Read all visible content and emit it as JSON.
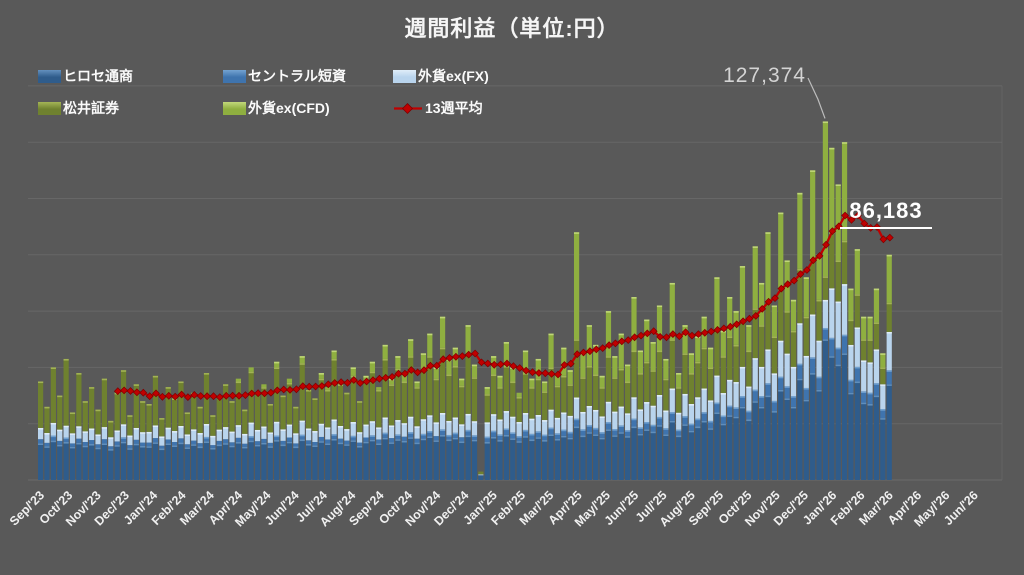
{
  "title": "週間利益（単位:円）",
  "colors": {
    "background": "#595959",
    "grid": "#6B6B6B",
    "text": "#F5F5F5",
    "tick_text": "#F0F0F0",
    "annotation_gray": "#D4D4D4",
    "callout_line": "#BDBDBD"
  },
  "legend": {
    "items": [
      {
        "label": "ヒロセ通商",
        "type": "swatch",
        "color": "#2F5C8B",
        "light": "#6390BE"
      },
      {
        "label": "セントラル短資",
        "type": "swatch",
        "color": "#3F74AE",
        "light": "#74A3D2"
      },
      {
        "label": "外貨ex(FX)",
        "type": "swatch",
        "color": "#B9D4ED",
        "light": "#E0EDF9"
      },
      {
        "label": "松井証券",
        "type": "swatch",
        "color": "#6F812F",
        "light": "#A4B556"
      },
      {
        "label": "外貨ex(CFD)",
        "type": "swatch",
        "color": "#8FAF40",
        "light": "#C2D87A"
      },
      {
        "label": "13週平均",
        "type": "line",
        "color": "#C00000",
        "light": "#E06060"
      }
    ]
  },
  "chart_data": {
    "type": "bar",
    "subtype": "stacked-weekly-bars-with-moving-average-line",
    "title": "週間利益（単位:円）",
    "unit": "円",
    "ylim": [
      0,
      140000
    ],
    "grid_step": 20000,
    "grid_visible": true,
    "y_axis_labels_visible": false,
    "legend_position": "top-left",
    "x_tick_labels": [
      "Sep/'23",
      "Oct/'23",
      "Nov/'23",
      "Dec/'23",
      "Jan/'24",
      "Feb/'24",
      "Mar/'24",
      "Apr/'24",
      "May/'24",
      "Jun/'24",
      "Jul/'24",
      "Aug/'24",
      "Sep/'24",
      "Oct/'24",
      "Nov/'24",
      "Dec/'24",
      "Jan/'25",
      "Feb/'25",
      "Mar/'25",
      "Apr/'25",
      "May/'25",
      "Jun/'25",
      "Jul/'25",
      "Aug/'25",
      "Sep/'25",
      "Oct/'25",
      "Nov/'25",
      "Dec/'25",
      "Jan/'26",
      "Feb/'26",
      "Mar/'26",
      "Apr/'26",
      "May/'26",
      "Jun/'26"
    ],
    "series": [
      {
        "name": "ヒロセ通商",
        "color": "#2F5C8B",
        "light": "#6390BE",
        "values": [
          13000,
          12000,
          14000,
          12500,
          13500,
          11800,
          13200,
          12200,
          12800,
          11500,
          13000,
          11000,
          12400,
          13600,
          11300,
          12900,
          12100,
          12000,
          13400,
          11200,
          13000,
          12300,
          13300,
          11600,
          12700,
          11900,
          13700,
          11400,
          12600,
          13100,
          12200,
          13500,
          11800,
          14000,
          12500,
          13200,
          12000,
          14200,
          12600,
          13600,
          11900,
          14400,
          12800,
          12300,
          13800,
          13000,
          14600,
          13300,
          12700,
          14100,
          12100,
          13600,
          14300,
          13000,
          15000,
          13400,
          14500,
          13900,
          15200,
          13300,
          14700,
          15500,
          14100,
          16000,
          14400,
          15000,
          13700,
          15800,
          14300,
          1500,
          13500,
          15300,
          14200,
          16000,
          14800,
          13800,
          15600,
          14400,
          15200,
          14200,
          16200,
          14600,
          15700,
          15000,
          19000,
          15800,
          17000,
          16200,
          15000,
          18000,
          15900,
          17000,
          15600,
          19000,
          16400,
          18000,
          17200,
          19500,
          16200,
          21000,
          15800,
          19800,
          17500,
          19000,
          21000,
          18400,
          24000,
          20000,
          23000,
          22500,
          26000,
          21500,
          28000,
          26000,
          30000,
          24500,
          32000,
          29000,
          26000,
          36000,
          28500,
          38000,
          32000,
          50000,
          44000,
          41000,
          45000,
          31000,
          35000,
          27500,
          27000,
          30000,
          22000,
          34000
        ]
      },
      {
        "name": "セントラル短資",
        "color": "#3F74AE",
        "light": "#74A3D2",
        "values": [
          1500,
          1200,
          1800,
          1400,
          1600,
          1200,
          1500,
          1300,
          1400,
          1200,
          1500,
          1000,
          1300,
          1600,
          1100,
          1400,
          1200,
          1300,
          1500,
          1000,
          1400,
          1200,
          1500,
          1100,
          1300,
          1200,
          1600,
          1000,
          1300,
          1400,
          1200,
          1500,
          1100,
          1600,
          1300,
          1400,
          1200,
          1600,
          1300,
          1500,
          1100,
          1700,
          1300,
          1200,
          1500,
          1400,
          1700,
          1400,
          1300,
          1600,
          1200,
          1500,
          1600,
          1400,
          1800,
          1500,
          1700,
          1500,
          1800,
          1400,
          1700,
          1900,
          1500,
          2000,
          1600,
          1800,
          1500,
          2000,
          1600,
          200,
          1900,
          2200,
          2000,
          2300,
          2100,
          1800,
          2200,
          2000,
          2100,
          1900,
          2400,
          2000,
          2200,
          2100,
          2800,
          2200,
          2500,
          2300,
          2000,
          2600,
          2200,
          2400,
          2100,
          2800,
          2300,
          2600,
          2400,
          2900,
          2200,
          3100,
          2100,
          2900,
          2500,
          2800,
          3100,
          2600,
          3500,
          2900,
          3400,
          3300,
          3800,
          3100,
          4100,
          3800,
          4400,
          3600,
          4700,
          4300,
          3800,
          5300,
          4200,
          5600,
          4700,
          4000,
          6500,
          6000,
          6600,
          4600,
          5200,
          4000,
          4000,
          4400,
          3200,
          5000
        ]
      },
      {
        "name": "外貨ex(FX)",
        "color": "#B9D4ED",
        "light": "#E0EDF9",
        "values": [
          4000,
          3500,
          4500,
          4000,
          4200,
          3600,
          4400,
          3800,
          4100,
          3500,
          4300,
          3200,
          3900,
          4600,
          3400,
          4200,
          3700,
          3800,
          4500,
          3300,
          4200,
          3900,
          4400,
          3500,
          4000,
          3600,
          4600,
          3300,
          4000,
          4300,
          3800,
          4500,
          3500,
          4800,
          4000,
          4400,
          3700,
          4900,
          4100,
          4600,
          3600,
          5000,
          4200,
          3900,
          4700,
          4300,
          5200,
          4500,
          4100,
          4900,
          3700,
          4600,
          5000,
          4300,
          5400,
          4500,
          5100,
          4800,
          5500,
          4400,
          5200,
          5600,
          4900,
          5800,
          5000,
          5400,
          4600,
          5700,
          5000,
          300,
          5100,
          5900,
          5300,
          6200,
          5600,
          5000,
          6000,
          5400,
          5800,
          5200,
          6400,
          5500,
          6100,
          5700,
          7500,
          6200,
          6800,
          6400,
          5600,
          7200,
          6200,
          6700,
          6000,
          7600,
          6400,
          7100,
          6800,
          7800,
          6300,
          8400,
          6000,
          7900,
          7000,
          7600,
          8400,
          7300,
          9600,
          8000,
          9200,
          9000,
          10400,
          8600,
          11200,
          10400,
          12000,
          9800,
          12800,
          11600,
          10400,
          14400,
          11400,
          15200,
          12800,
          10000,
          17600,
          16400,
          18000,
          12400,
          14000,
          11000,
          10800,
          12000,
          8800,
          13600
        ]
      },
      {
        "name": "松井証券",
        "color": "#6F812F",
        "light": "#A4B556",
        "values": [
          16500,
          9300,
          19700,
          12100,
          23700,
          7400,
          18900,
          10700,
          14700,
          8800,
          17200,
          5800,
          13400,
          19200,
          7200,
          15500,
          11000,
          9900,
          17600,
          6500,
          14400,
          11600,
          15800,
          7800,
          13000,
          9300,
          18100,
          7300,
          12100,
          15200,
          10800,
          15500,
          8600,
          18100,
          13200,
          14000,
          10100,
          19300,
          12000,
          14800,
          9400,
          20400,
          13700,
          11600,
          16000,
          13300,
          21500,
          14800,
          12900,
          16400,
          11000,
          15300,
          17600,
          13300,
          20800,
          14600,
          18200,
          14800,
          21500,
          13900,
          17400,
          21000,
          15500,
          23200,
          16500,
          18300,
          13700,
          21000,
          15600,
          1000,
          10000,
          14100,
          11500,
          16000,
          12500,
          8900,
          14200,
          11200,
          12900,
          10200,
          15000,
          11400,
          13000,
          11200,
          20700,
          12300,
          14200,
          12600,
          10400,
          16200,
          12200,
          13400,
          11300,
          16600,
          12900,
          14300,
          12600,
          15800,
          11300,
          17500,
          9100,
          14400,
          11000,
          12600,
          14500,
          11700,
          16900,
          13100,
          15400,
          13200,
          16800,
          12800,
          17700,
          14800,
          17600,
          13100,
          18500,
          15100,
          12800,
          19300,
          13900,
          20200,
          14500,
          8374,
          19900,
          14600,
          15400,
          9000,
          11800,
          7500,
          8200,
          9600,
          6000,
          10400
        ]
      },
      {
        "name": "外貨ex(CFD)",
        "color": "#8FAF40",
        "light": "#C2D87A",
        "values": [
          0,
          0,
          0,
          0,
          0,
          0,
          0,
          0,
          0,
          0,
          0,
          0,
          0,
          0,
          0,
          0,
          0,
          0,
          0,
          0,
          0,
          0,
          0,
          0,
          0,
          0,
          0,
          0,
          0,
          0,
          0,
          1000,
          0,
          1500,
          0,
          1000,
          0,
          2000,
          0,
          1500,
          0,
          2500,
          0,
          0,
          2000,
          1000,
          3000,
          1000,
          0,
          3000,
          0,
          2000,
          3500,
          1000,
          5000,
          2000,
          4500,
          3000,
          6000,
          2000,
          6000,
          8000,
          4000,
          11000,
          5500,
          6500,
          2500,
          10500,
          4500,
          0,
          2500,
          6500,
          4000,
          8500,
          5000,
          1500,
          8000,
          3000,
          7000,
          3500,
          12000,
          4500,
          10000,
          5000,
          38000,
          8500,
          14500,
          10500,
          4000,
          16000,
          7500,
          12500,
          6000,
          19000,
          8000,
          15000,
          10000,
          16000,
          7000,
          20000,
          5000,
          10000,
          7000,
          9000,
          11000,
          7000,
          18000,
          9000,
          14000,
          12000,
          19000,
          9000,
          22000,
          15000,
          24000,
          11000,
          27000,
          18000,
          11000,
          27000,
          14000,
          31000,
          16000,
          55000,
          30000,
          27000,
          35000,
          11000,
          16000,
          8000,
          8000,
          12000,
          5000,
          17000
        ]
      }
    ],
    "average_line": {
      "name": "13週平均",
      "window": 13,
      "color": "#C00000",
      "marker_edge": "#7E0000",
      "last_value": 86183
    },
    "annotations": {
      "peak_label": "127,374",
      "peak_value": 127374,
      "peak_week_index": 123,
      "latest_avg_label": "86,183",
      "latest_avg_value": 86183
    }
  }
}
